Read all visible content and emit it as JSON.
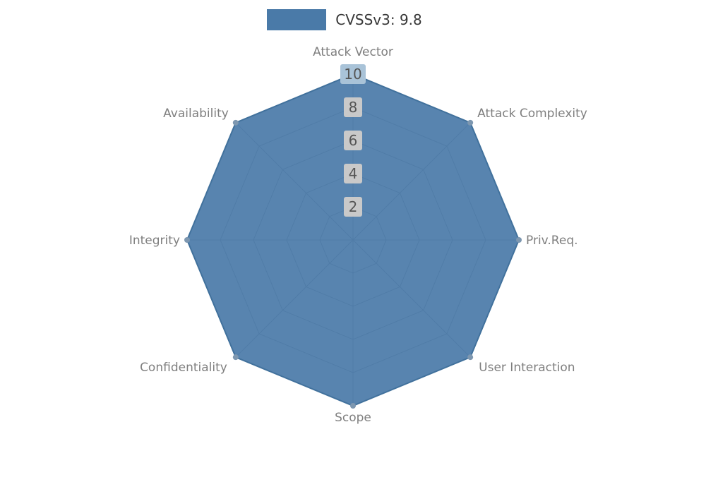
{
  "chart_data": {
    "type": "radar",
    "title": "",
    "categories": [
      "Attack Vector",
      "Attack Complexity",
      "Priv.Req.",
      "User Interaction",
      "Scope",
      "Confidentiality",
      "Integrity",
      "Availability"
    ],
    "series": [
      {
        "name": "CVSSv3: 9.8",
        "values": [
          10,
          10,
          10,
          10,
          10,
          10,
          10,
          10
        ]
      }
    ],
    "ticks": [
      2,
      4,
      6,
      8,
      10
    ],
    "max": 10,
    "legend": {
      "label": "CVSSv3: 9.8",
      "position": "top"
    },
    "colors": {
      "fill": "#4a7aa8",
      "stroke": "#41719c",
      "grid": "#9a9a9a",
      "marker": "#7d97b0",
      "tick_chip": "#c9c9c9",
      "tick_chip_top": "#a9c3d8",
      "tick_text": "#555555",
      "axis_label": "#7f7f7f",
      "legend_text": "#373737"
    }
  }
}
